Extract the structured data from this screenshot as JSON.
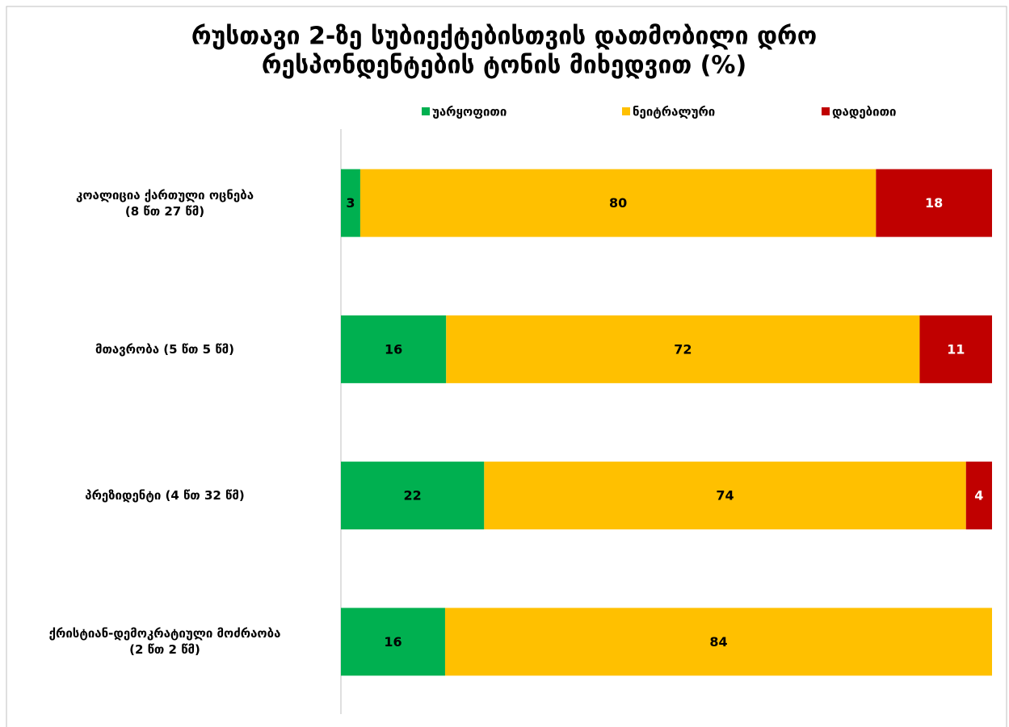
{
  "chart_data": {
    "type": "bar",
    "orientation": "horizontal",
    "stacked": "percent",
    "title": [
      "რუსთავი 2-ზე სუბიექტებისთვის დათმობილი დრო",
      "რესპონდენტების ტონის მიხედვით (%)"
    ],
    "categories": [
      [
        "კოალიცია ქართული ოცნება",
        "(8 წთ 27 წმ)"
      ],
      [
        "მთავრობა (5 წთ 5 წმ)"
      ],
      [
        "პრეზიდენტი (4 წთ 32 წმ)"
      ],
      [
        "ქრისტიან-დემოკრატიული მოძრაობა",
        "(2 წთ 2 წმ)"
      ]
    ],
    "series": [
      {
        "name": "უარყოფითი",
        "color": "#00b050",
        "label_color": "#000000",
        "values": [
          3,
          16,
          22,
          16
        ]
      },
      {
        "name": "ნეიტრალური",
        "color": "#ffc000",
        "label_color": "#000000",
        "values": [
          80,
          72,
          74,
          84
        ]
      },
      {
        "name": "დადებითი",
        "color": "#c00000",
        "label_color": "#ffffff",
        "values": [
          18,
          11,
          4,
          null
        ]
      }
    ],
    "legend": "top"
  }
}
